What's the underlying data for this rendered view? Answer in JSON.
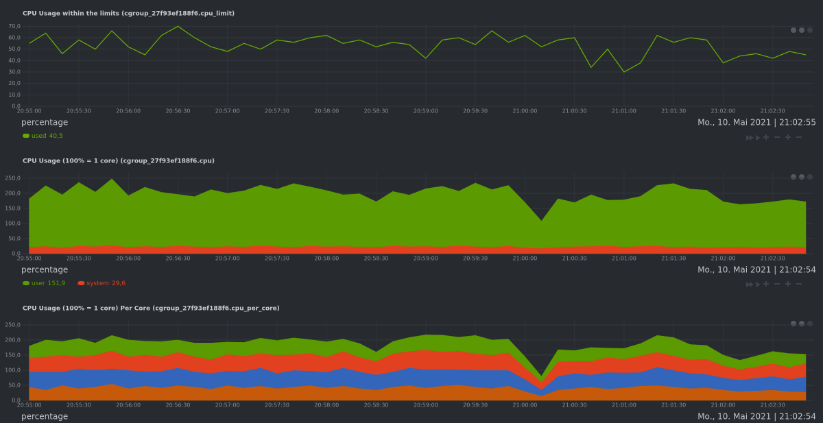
{
  "chart_data": [
    {
      "type": "line",
      "title": "CPU Usage within the limits (cgroup_27f93ef188f6.cpu_limit)",
      "units": "percentage",
      "date": "Mo., 10. Mai 2021 | 21:02:55",
      "x": [
        "20:55:00",
        "20:55:10",
        "20:55:20",
        "20:55:30",
        "20:55:40",
        "20:55:50",
        "20:56:00",
        "20:56:10",
        "20:56:20",
        "20:56:30",
        "20:56:40",
        "20:56:50",
        "20:57:00",
        "20:57:10",
        "20:57:20",
        "20:57:30",
        "20:57:40",
        "20:57:50",
        "20:58:00",
        "20:58:10",
        "20:58:20",
        "20:58:30",
        "20:58:40",
        "20:58:50",
        "20:59:00",
        "20:59:10",
        "20:59:20",
        "20:59:30",
        "20:59:40",
        "20:59:50",
        "21:00:00",
        "21:00:10",
        "21:00:20",
        "21:00:30",
        "21:00:40",
        "21:00:50",
        "21:01:00",
        "21:01:10",
        "21:01:20",
        "21:01:30",
        "21:01:40",
        "21:01:50",
        "21:02:00",
        "21:02:10",
        "21:02:20",
        "21:02:30",
        "21:02:40",
        "21:02:50"
      ],
      "xlim": [
        "20:54:56",
        "21:02:55"
      ],
      "xticks": [
        "20:55:00",
        "20:55:30",
        "20:56:00",
        "20:56:30",
        "20:57:00",
        "20:57:30",
        "20:58:00",
        "20:58:30",
        "20:59:00",
        "20:59:30",
        "21:00:00",
        "21:00:30",
        "21:01:00",
        "21:01:30",
        "21:02:00",
        "21:02:30"
      ],
      "ylim": [
        0,
        72
      ],
      "yticks": [
        {
          "value": 0,
          "label": "0,0"
        },
        {
          "value": 10,
          "label": "10,0"
        },
        {
          "value": 20,
          "label": "20,0"
        },
        {
          "value": 30,
          "label": "30,0"
        },
        {
          "value": 40,
          "label": "40,0"
        },
        {
          "value": 50,
          "label": "50,0"
        },
        {
          "value": 60,
          "label": "60,0"
        },
        {
          "value": 70,
          "label": "70,0"
        }
      ],
      "grid": true,
      "series": [
        {
          "name": "used",
          "current": "40,5",
          "color": "#66aa00",
          "values": [
            55,
            64,
            46,
            58,
            50,
            66,
            52,
            45,
            62,
            70,
            60,
            52,
            48,
            55,
            50,
            58,
            56,
            60,
            62,
            55,
            58,
            52,
            56,
            54,
            42,
            58,
            60,
            54,
            66,
            56,
            62,
            52,
            58,
            60,
            34,
            50,
            30,
            38,
            62,
            56,
            60,
            58,
            38,
            44,
            46,
            42,
            48,
            45
          ]
        }
      ]
    },
    {
      "type": "area",
      "stacked": true,
      "title": "CPU Usage (100% = 1 core) (cgroup_27f93ef188f6.cpu)",
      "units": "percentage",
      "date": "Mo., 10. Mai 2021 | 21:02:54",
      "x": [
        "20:55:00",
        "20:55:10",
        "20:55:20",
        "20:55:30",
        "20:55:40",
        "20:55:50",
        "20:56:00",
        "20:56:10",
        "20:56:20",
        "20:56:30",
        "20:56:40",
        "20:56:50",
        "20:57:00",
        "20:57:10",
        "20:57:20",
        "20:57:30",
        "20:57:40",
        "20:57:50",
        "20:58:00",
        "20:58:10",
        "20:58:20",
        "20:58:30",
        "20:58:40",
        "20:58:50",
        "20:59:00",
        "20:59:10",
        "20:59:20",
        "20:59:30",
        "20:59:40",
        "20:59:50",
        "21:00:00",
        "21:00:10",
        "21:00:20",
        "21:00:30",
        "21:00:40",
        "21:00:50",
        "21:01:00",
        "21:01:10",
        "21:01:20",
        "21:01:30",
        "21:01:40",
        "21:01:50",
        "21:02:00",
        "21:02:10",
        "21:02:20",
        "21:02:30",
        "21:02:40",
        "21:02:50"
      ],
      "xlim": [
        "20:54:56",
        "21:02:55"
      ],
      "xticks": [
        "20:55:00",
        "20:55:30",
        "20:56:00",
        "20:56:30",
        "20:57:00",
        "20:57:30",
        "20:58:00",
        "20:58:30",
        "20:59:00",
        "20:59:30",
        "21:00:00",
        "21:00:30",
        "21:01:00",
        "21:01:30",
        "21:02:00",
        "21:02:30"
      ],
      "ylim": [
        0,
        270
      ],
      "yticks": [
        {
          "value": 0,
          "label": "0,0"
        },
        {
          "value": 50,
          "label": "50,0"
        },
        {
          "value": 100,
          "label": "100,0"
        },
        {
          "value": 150,
          "label": "150,0"
        },
        {
          "value": 200,
          "label": "200,0"
        },
        {
          "value": 250,
          "label": "250,0"
        }
      ],
      "grid": true,
      "series": [
        {
          "name": "system",
          "current": "29,6",
          "color": "#e1411e",
          "values": [
            22,
            25,
            20,
            26,
            24,
            28,
            22,
            25,
            23,
            26,
            24,
            22,
            25,
            23,
            27,
            24,
            22,
            26,
            24,
            25,
            23,
            22,
            26,
            24,
            25,
            23,
            27,
            24,
            22,
            26,
            20,
            18,
            22,
            24,
            25,
            27,
            23,
            25,
            26,
            22,
            24,
            20,
            22,
            23,
            21,
            22,
            24,
            22
          ]
        },
        {
          "name": "user",
          "current": "151,9",
          "color": "#5b9a00",
          "values": [
            160,
            200,
            175,
            210,
            180,
            220,
            170,
            195,
            180,
            170,
            165,
            190,
            175,
            185,
            200,
            190,
            210,
            195,
            185,
            170,
            175,
            150,
            180,
            170,
            190,
            200,
            180,
            210,
            190,
            200,
            150,
            90,
            160,
            145,
            170,
            150,
            155,
            165,
            200,
            210,
            190,
            190,
            150,
            140,
            145,
            150,
            155,
            150
          ]
        }
      ]
    },
    {
      "type": "area",
      "stacked": true,
      "title": "CPU Usage (100% = 1 core) Per Core (cgroup_27f93ef188f6.cpu_per_core)",
      "units": "percentage",
      "date": "Mo., 10. Mai 2021 | 21:02:54",
      "x": [
        "20:55:00",
        "20:55:10",
        "20:55:20",
        "20:55:30",
        "20:55:40",
        "20:55:50",
        "20:56:00",
        "20:56:10",
        "20:56:20",
        "20:56:30",
        "20:56:40",
        "20:56:50",
        "20:57:00",
        "20:57:10",
        "20:57:20",
        "20:57:30",
        "20:57:40",
        "20:57:50",
        "20:58:00",
        "20:58:10",
        "20:58:20",
        "20:58:30",
        "20:58:40",
        "20:58:50",
        "20:59:00",
        "20:59:10",
        "20:59:20",
        "20:59:30",
        "20:59:40",
        "20:59:50",
        "21:00:00",
        "21:00:10",
        "21:00:20",
        "21:00:30",
        "21:00:40",
        "21:00:50",
        "21:01:00",
        "21:01:10",
        "21:01:20",
        "21:01:30",
        "21:01:40",
        "21:01:50",
        "21:02:00",
        "21:02:10",
        "21:02:20",
        "21:02:30",
        "21:02:40",
        "21:02:50"
      ],
      "xlim": [
        "20:54:56",
        "21:02:55"
      ],
      "xticks": [
        "20:55:00",
        "20:55:30",
        "20:56:00",
        "20:56:30",
        "20:57:00",
        "20:57:30",
        "20:58:00",
        "20:58:30",
        "20:59:00",
        "20:59:30",
        "21:00:00",
        "21:00:30",
        "21:01:00",
        "21:01:30",
        "21:02:00",
        "21:02:30"
      ],
      "ylim": [
        0,
        270
      ],
      "yticks": [
        {
          "value": 0,
          "label": "0,0"
        },
        {
          "value": 50,
          "label": "50,0"
        },
        {
          "value": 100,
          "label": "100,0"
        },
        {
          "value": 150,
          "label": "150,0"
        },
        {
          "value": 200,
          "label": "200,0"
        },
        {
          "value": 250,
          "label": "250,0"
        }
      ],
      "grid": true,
      "series": [
        {
          "color": "#c65a0a",
          "values": [
            45,
            35,
            50,
            40,
            45,
            55,
            40,
            48,
            42,
            50,
            45,
            38,
            50,
            42,
            48,
            40,
            45,
            50,
            42,
            48,
            40,
            35,
            45,
            50,
            42,
            48,
            52,
            45,
            40,
            48,
            30,
            15,
            35,
            40,
            45,
            38,
            42,
            48,
            50,
            45,
            40,
            42,
            35,
            30,
            32,
            35,
            30,
            28
          ]
        },
        {
          "color": "#3366bb",
          "values": [
            50,
            60,
            45,
            65,
            55,
            50,
            60,
            48,
            55,
            58,
            50,
            52,
            48,
            55,
            60,
            50,
            55,
            48,
            52,
            60,
            55,
            50,
            50,
            58,
            60,
            55,
            50,
            55,
            60,
            52,
            40,
            20,
            45,
            50,
            40,
            55,
            50,
            45,
            60,
            55,
            50,
            45,
            40,
            38,
            42,
            45,
            40,
            50
          ]
        },
        {
          "color": "#e1411e",
          "values": [
            45,
            50,
            55,
            40,
            50,
            60,
            45,
            55,
            48,
            52,
            50,
            45,
            55,
            50,
            48,
            60,
            52,
            58,
            50,
            55,
            48,
            45,
            60,
            55,
            65,
            58,
            62,
            55,
            50,
            58,
            40,
            25,
            48,
            40,
            45,
            50,
            45,
            55,
            50,
            48,
            45,
            50,
            40,
            35,
            38,
            42,
            40,
            45
          ]
        },
        {
          "color": "#5b9a00",
          "values": [
            40,
            55,
            45,
            60,
            40,
            50,
            55,
            45,
            50,
            40,
            45,
            55,
            40,
            45,
            50,
            48,
            55,
            45,
            50,
            40,
            45,
            30,
            40,
            45,
            50,
            55,
            45,
            60,
            50,
            45,
            35,
            20,
            40,
            35,
            45,
            30,
            35,
            40,
            55,
            60,
            50,
            45,
            35,
            30,
            35,
            40,
            45,
            30
          ]
        }
      ]
    }
  ]
}
